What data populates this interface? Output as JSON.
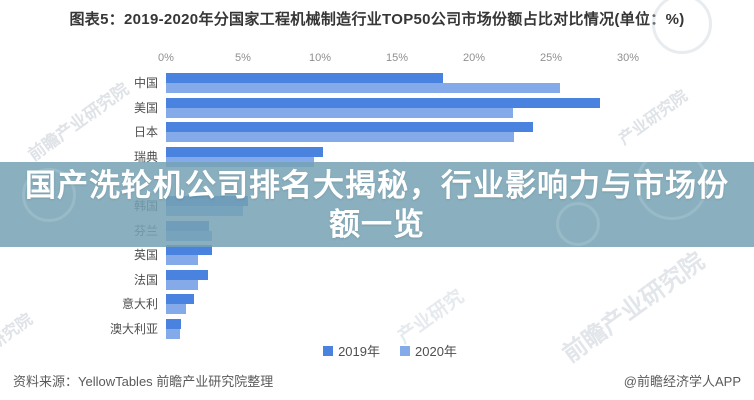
{
  "title": "图表5：2019-2020年分国家工程机械制造行业TOP50公司市场份额占比对比情况(单位：%)",
  "overlay": {
    "headline_line1": "国产洗轮机公司排名大揭秘，行业影响力与市场份",
    "headline_line2": "额一览",
    "bg_color": "#75a2b4"
  },
  "chart_data": {
    "type": "bar",
    "orientation": "horizontal",
    "unit": "%",
    "title": "2019-2020年分国家工程机械制造行业TOP50公司市场份额占比对比情况",
    "categories": [
      "中国",
      "美国",
      "日本",
      "瑞典",
      "韩国",
      "芬兰",
      "英国",
      "法国",
      "意大利",
      "澳大利亚"
    ],
    "series": [
      {
        "name": "2019年",
        "color": "#4a82df",
        "values": [
          18.0,
          28.2,
          23.8,
          10.2,
          5.3,
          2.8,
          3.0,
          2.7,
          1.8,
          1.0
        ]
      },
      {
        "name": "2020年",
        "color": "#84aaea",
        "values": [
          25.6,
          22.5,
          22.6,
          9.6,
          5.0,
          3.0,
          2.1,
          2.1,
          1.3,
          0.9
        ]
      }
    ],
    "x_ticks": [
      "0%",
      "5%",
      "10%",
      "15%",
      "20%",
      "25%",
      "30%"
    ],
    "xlim": [
      0,
      30
    ],
    "axis_position": "top",
    "grid": false,
    "legend_position": "bottom",
    "note": "one category row is fully hidden behind the headline overlay between 瑞典 and 韩国",
    "layout": {
      "spacer_after_index": 3
    }
  },
  "footer": {
    "source_left": "资料来源：YellowTables 前瞻产业研究院整理",
    "credit_right": "@前瞻经济学人APP"
  },
  "watermarks": [
    "前瞻产业研究院",
    "产业研究院",
    "前瞻产业研究院",
    "产业研究",
    "研究院"
  ]
}
